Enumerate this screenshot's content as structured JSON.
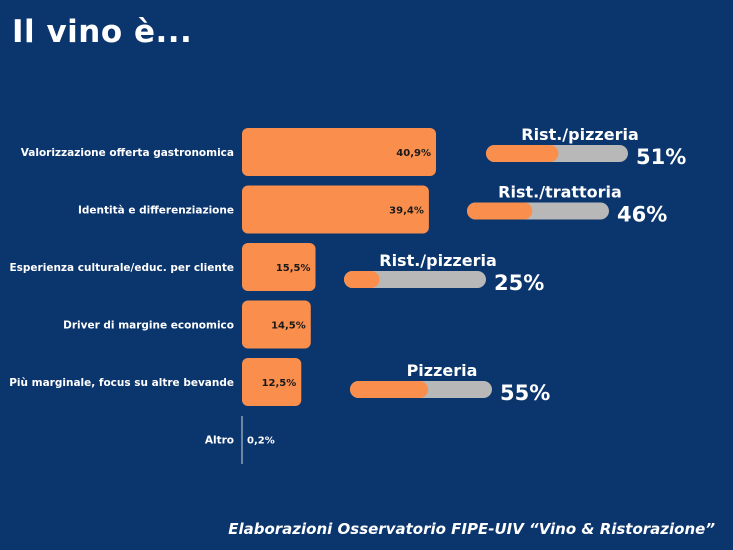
{
  "title": "Il vino è...",
  "footer": "Elaborazioni Osservatorio FIPE-UIV “Vino & Ristorazione”",
  "colors": {
    "background": "#0b356d",
    "bar": "#fa8f4d",
    "track": "#b8b8b8",
    "text": "#ffffff",
    "axis": "#cfd6e0"
  },
  "chart_data": {
    "type": "bar",
    "orientation": "horizontal",
    "categories": [
      "Valorizzazione offerta gastronomica",
      "Identità e differenziazione",
      "Esperienza culturale/educ. per cliente",
      "Driver di margine economico",
      "Più marginale, focus su altre bevande",
      "Altro"
    ],
    "values": [
      40.9,
      39.4,
      15.5,
      14.5,
      12.5,
      0.2
    ],
    "value_labels": [
      "40,9%",
      "39,4%",
      "15,5%",
      "14,5%",
      "12,5%",
      "0,2%"
    ],
    "callouts": [
      {
        "row": 0,
        "label": "Rist./pizzeria",
        "value": 51,
        "value_label": "51%"
      },
      {
        "row": 1,
        "label": "Rist./trattoria",
        "value": 46,
        "value_label": "46%"
      },
      {
        "row": 2,
        "label": "Rist./pizzeria",
        "value": 25,
        "value_label": "25%"
      },
      {
        "row": 4,
        "label": "Pizzeria",
        "value": 55,
        "value_label": "55%"
      }
    ]
  }
}
